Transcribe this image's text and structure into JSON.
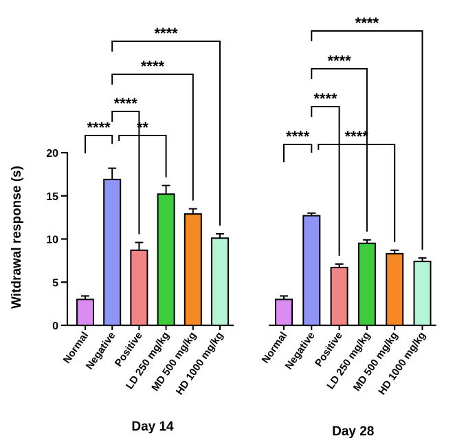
{
  "chart_data": {
    "type": "bar",
    "ylabel": "Witdrawal response (s)",
    "ylim": [
      0,
      20
    ],
    "yticks": [
      0,
      5,
      10,
      15,
      20
    ],
    "categories": [
      "Normal",
      "Negative",
      "Positive",
      "LD 250 mg/kg",
      "MD 500 mg/kg",
      "HD 1000 mg/kg"
    ],
    "colors": [
      "#da8cf0",
      "#8f95f7",
      "#f18585",
      "#3ccc3c",
      "#f58a25",
      "#b4f5d6"
    ],
    "panels": [
      {
        "title": "Day 14",
        "values": [
          3.0,
          16.9,
          8.7,
          15.2,
          12.9,
          10.1
        ],
        "errors": [
          0.4,
          1.3,
          0.9,
          1.0,
          0.6,
          0.5
        ],
        "comparisons": [
          {
            "from": 0,
            "to": 1,
            "label": "****"
          },
          {
            "from": 1,
            "to": 3,
            "label": "**"
          },
          {
            "from": 1,
            "to": 2,
            "label": "****"
          },
          {
            "from": 1,
            "to": 4,
            "label": "****"
          },
          {
            "from": 1,
            "to": 5,
            "label": "****"
          }
        ]
      },
      {
        "title": "Day 28",
        "values": [
          3.0,
          12.7,
          6.7,
          9.5,
          8.3,
          7.4
        ],
        "errors": [
          0.4,
          0.3,
          0.4,
          0.4,
          0.4,
          0.4
        ],
        "comparisons": [
          {
            "from": 0,
            "to": 1,
            "label": "****"
          },
          {
            "from": 1,
            "to": 4,
            "label": "****"
          },
          {
            "from": 1,
            "to": 2,
            "label": "****"
          },
          {
            "from": 1,
            "to": 3,
            "label": "****"
          },
          {
            "from": 1,
            "to": 5,
            "label": "****"
          }
        ]
      }
    ]
  }
}
